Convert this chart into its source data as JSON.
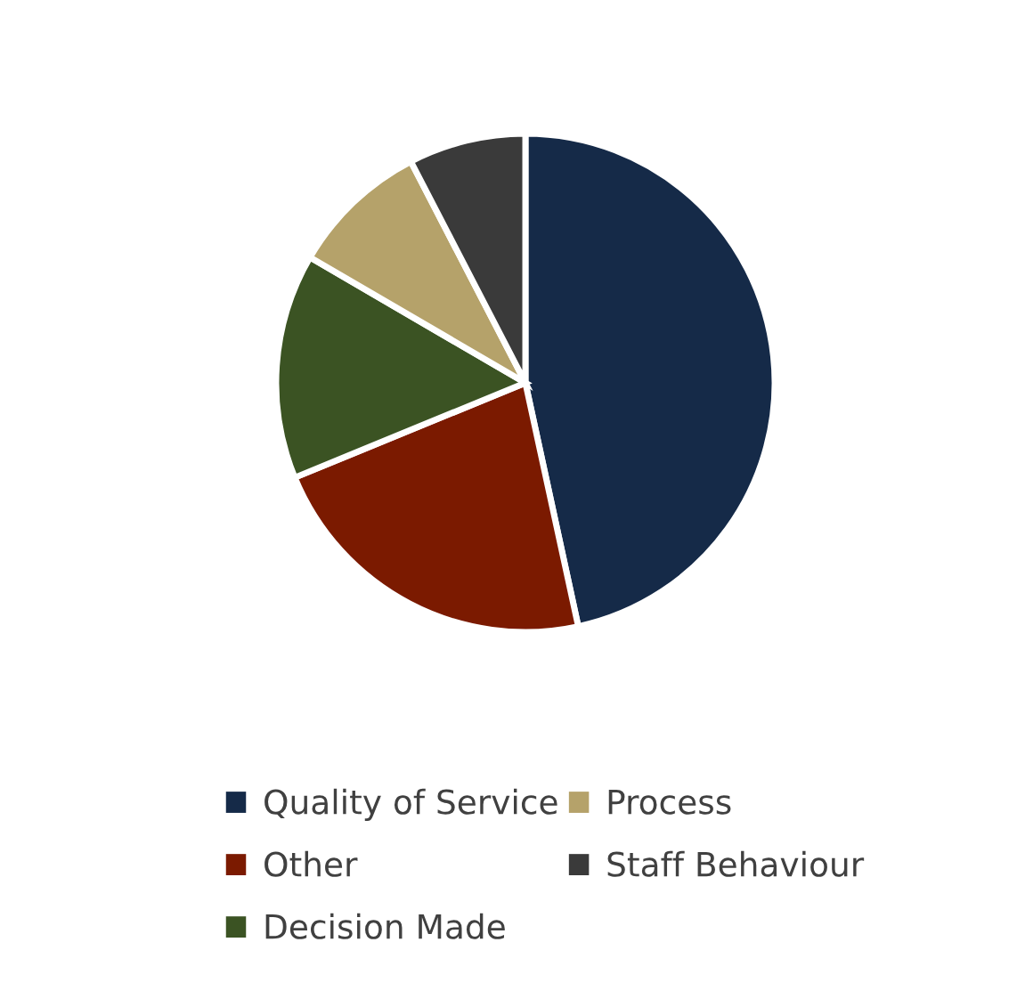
{
  "chart_data": {
    "type": "pie",
    "categories": [
      "Quality of Service",
      "Other",
      "Decision Made",
      "Process",
      "Staff Behaviour"
    ],
    "values": [
      46.6,
      22.2,
      14.6,
      9.0,
      7.6
    ],
    "colors": [
      "#152a48",
      "#7b1a00",
      "#3b5323",
      "#b5a26a",
      "#3a3a3a"
    ],
    "legend": "bottom"
  }
}
